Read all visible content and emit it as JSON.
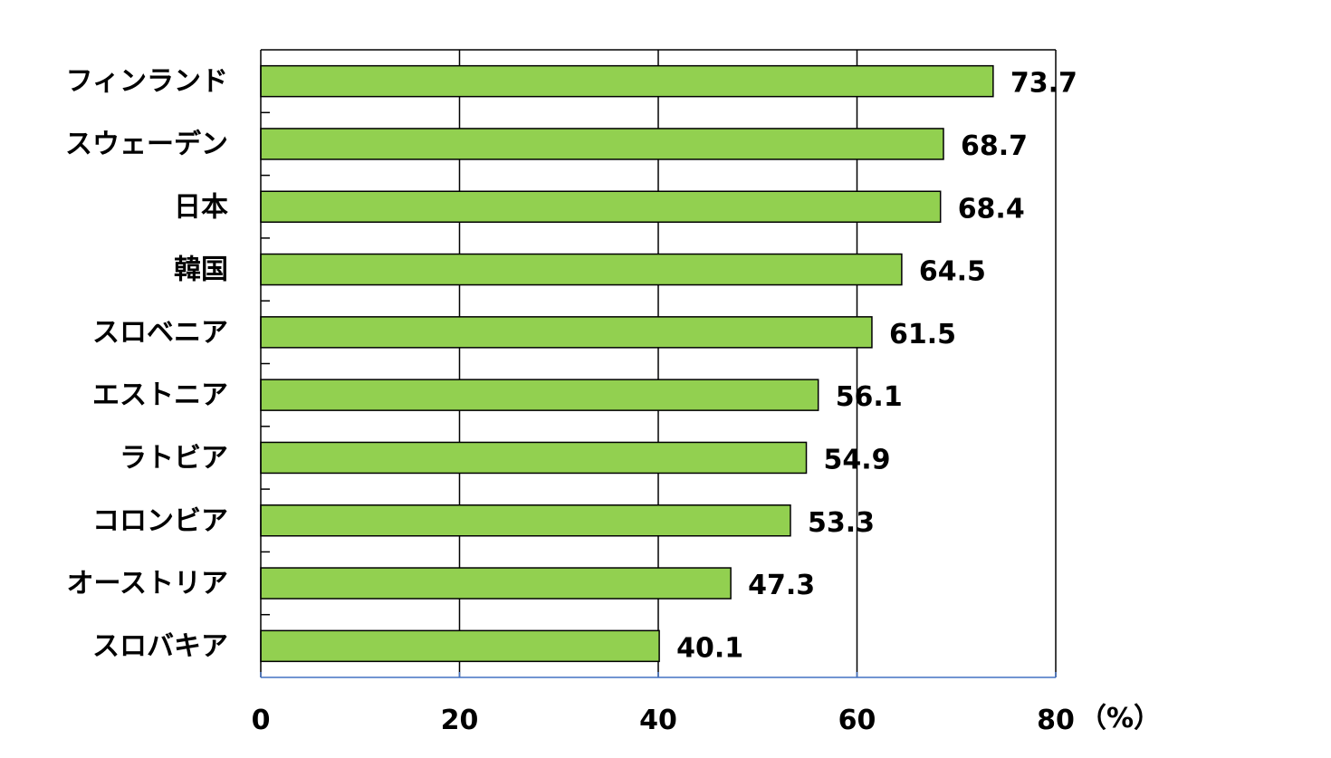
{
  "colors": {
    "bar": "#92d050",
    "bar_stroke": "#000000",
    "grid": "#000000",
    "x_axis_line": "#4472c4"
  },
  "chart_data": {
    "type": "bar",
    "orientation": "horizontal",
    "title": "",
    "xlabel": "",
    "ylabel": "",
    "unit_label": "（%）",
    "xlim": [
      0,
      80
    ],
    "x_ticks": [
      0,
      20,
      40,
      60,
      80
    ],
    "grid": true,
    "categories": [
      "フィンランド",
      "スウェーデン",
      "日本",
      "韓国",
      "スロベニア",
      "エストニア",
      "ラトビア",
      "コロンビア",
      "オーストリア",
      "スロバキア"
    ],
    "values": [
      73.7,
      68.7,
      68.4,
      64.5,
      61.5,
      56.1,
      54.9,
      53.3,
      47.3,
      40.1
    ],
    "value_labels": [
      "73.7",
      "68.7",
      "68.4",
      "64.5",
      "61.5",
      "56.1",
      "54.9",
      "53.3",
      "47.3",
      "40.1"
    ]
  }
}
